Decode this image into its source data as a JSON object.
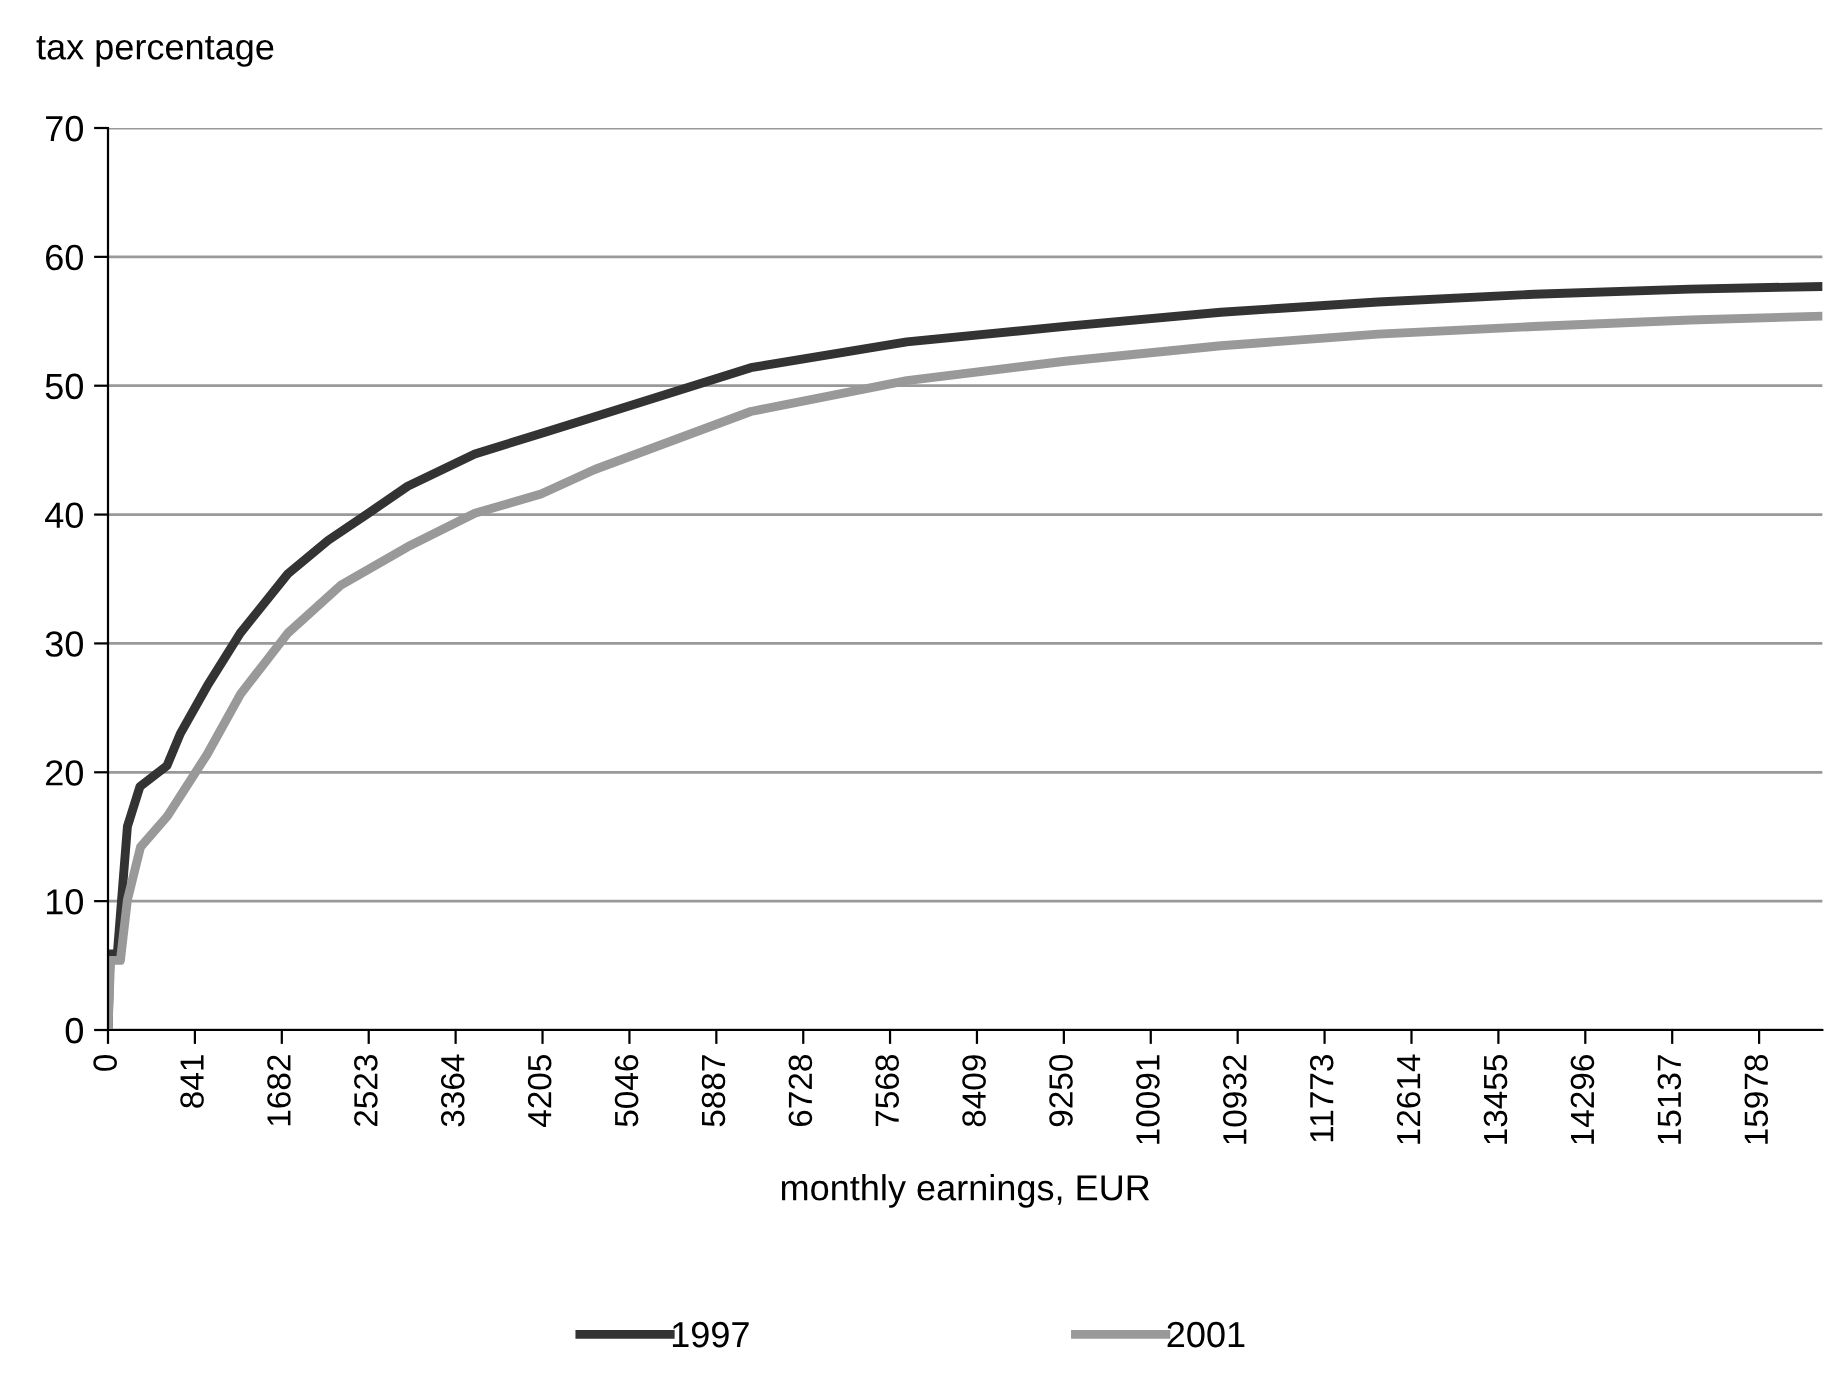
{
  "chart_data": {
    "type": "line",
    "ylabel": "tax percentage",
    "xlabel": "monthly earnings, EUR",
    "xlim": [
      0,
      16590
    ],
    "xticks": [
      0,
      841,
      1682,
      2523,
      3364,
      4205,
      5046,
      5887,
      6728,
      7568,
      8409,
      9250,
      10091,
      10932,
      11773,
      12614,
      13455,
      14296,
      15137,
      15978
    ],
    "ylim": [
      0,
      70
    ],
    "yticks": [
      0,
      10,
      20,
      30,
      40,
      50,
      60,
      70
    ],
    "grid": "y",
    "legend": "bottom",
    "marker": "none",
    "line_style": "solid",
    "series": [
      {
        "name": "1997",
        "color": "#333333",
        "x": [
          0,
          20,
          90,
          188,
          310,
          570,
          700,
          960,
          1280,
          1740,
          2130,
          2520,
          2900,
          3550,
          4190,
          4710,
          6220,
          7730,
          9260,
          10770,
          12290,
          13800,
          15310,
          16590
        ],
        "values": [
          0,
          5.9,
          5.9,
          15.8,
          18.9,
          20.5,
          23,
          26.7,
          30.8,
          35.4,
          38,
          40.1,
          42.2,
          44.7,
          46.3,
          47.6,
          51.4,
          53.4,
          54.6,
          55.7,
          56.5,
          57.1,
          57.5,
          57.7
        ]
      },
      {
        "name": "2001",
        "color": "#999999",
        "x": [
          0,
          25,
          120,
          188,
          315,
          575,
          960,
          1285,
          1740,
          2250,
          2900,
          3550,
          4190,
          4710,
          6220,
          7730,
          9260,
          10770,
          12290,
          13800,
          15310,
          16590
        ],
        "values": [
          0,
          5.4,
          5.4,
          10.1,
          14.2,
          16.6,
          21.4,
          26.1,
          30.8,
          34.5,
          37.5,
          40.1,
          41.6,
          43.5,
          48,
          50.4,
          51.9,
          53.1,
          54,
          54.6,
          55.1,
          55.4
        ]
      }
    ]
  }
}
